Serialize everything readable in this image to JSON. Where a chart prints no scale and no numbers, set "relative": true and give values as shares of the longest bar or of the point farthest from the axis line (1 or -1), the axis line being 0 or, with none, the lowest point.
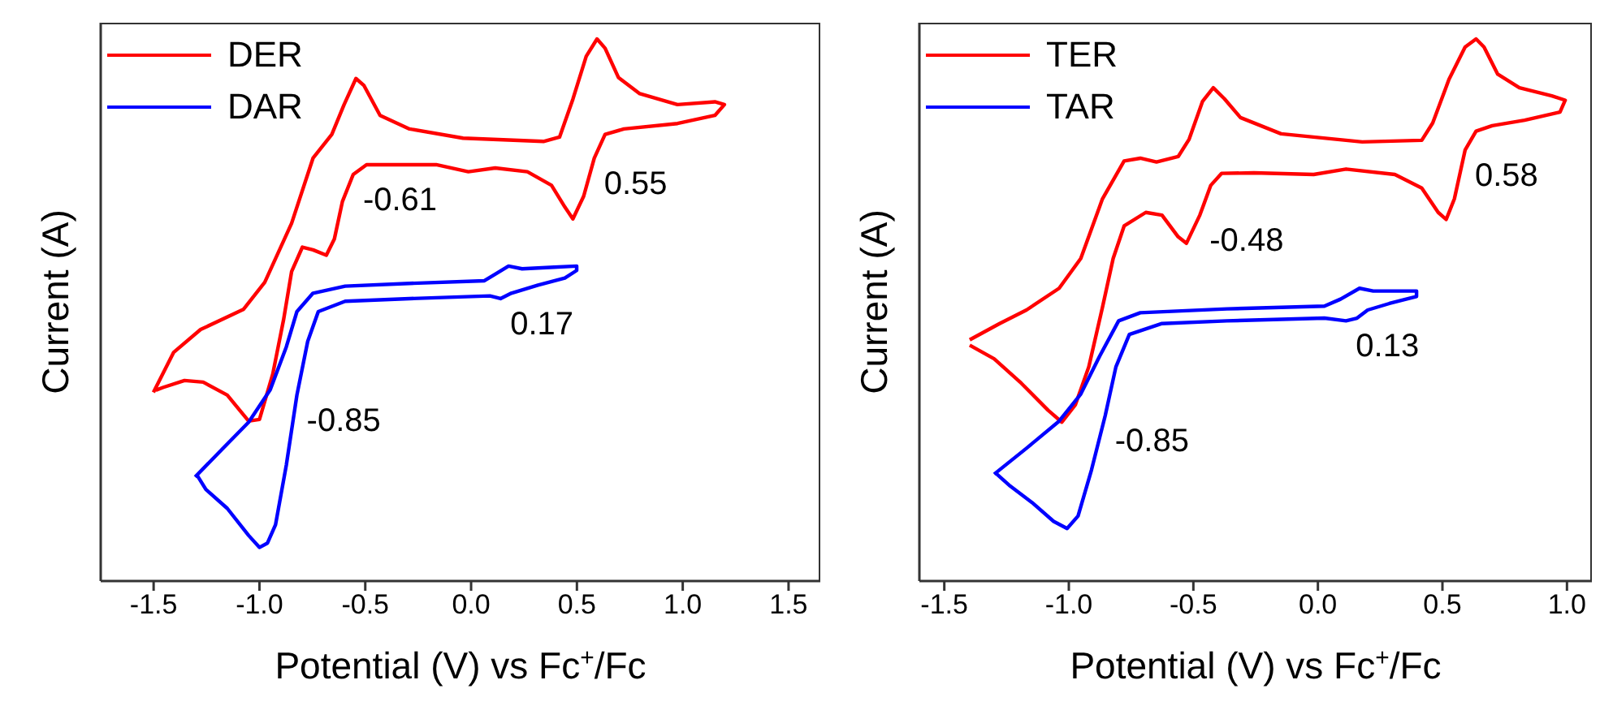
{
  "chart_data": [
    {
      "type": "line",
      "relative": true,
      "xlabel": "Potential (V) vs Fc$^{+}$/Fc",
      "ylabel": "Current (A)",
      "xlim": [
        -1.75,
        1.65
      ],
      "xticks": [
        {
          "value": -1.5,
          "label": "-1.5"
        },
        {
          "value": -1.0,
          "label": "-1.0"
        },
        {
          "value": -0.5,
          "label": "-0.5"
        },
        {
          "value": 0,
          "label": "0.0"
        },
        {
          "value": 0.5,
          "label": "0.5"
        },
        {
          "value": 1.0,
          "label": "1.0"
        },
        {
          "value": 1.5,
          "label": "1.5"
        }
      ],
      "legend": "top left",
      "grid": false,
      "marker": "none",
      "line_style": "solid",
      "series": [
        {
          "name": "DER",
          "color": "#ff0000",
          "x": [
            -1.501,
            -1.405,
            -1.278,
            -1.076,
            -0.975,
            -0.848,
            -0.747,
            -0.658,
            -0.6,
            -0.544,
            -0.506,
            -0.43,
            -0.291,
            -0.038,
            0.342,
            0.418,
            0.481,
            0.544,
            0.595,
            0.633,
            0.696,
            0.797,
            0.975,
            1.152,
            1.197,
            1.152,
            0.975,
            0.722,
            0.633,
            0.582,
            0.532,
            0.481,
            0.443,
            0.38,
            0.266,
            0.114,
            -0.013,
            -0.165,
            -0.494,
            -0.557,
            -0.608,
            -0.646,
            -0.684,
            -0.747,
            -0.797,
            -0.848,
            -0.886,
            -0.937,
            -1.0,
            -1.051,
            -1.152,
            -1.266,
            -1.354,
            -1.456,
            -1.49
          ],
          "values": [
            0.348,
            0.422,
            0.464,
            0.501,
            0.551,
            0.66,
            0.78,
            0.824,
            0.879,
            0.927,
            0.914,
            0.859,
            0.834,
            0.817,
            0.811,
            0.819,
            0.889,
            0.968,
            1.0,
            0.983,
            0.929,
            0.899,
            0.879,
            0.884,
            0.879,
            0.859,
            0.844,
            0.834,
            0.824,
            0.78,
            0.71,
            0.668,
            0.69,
            0.73,
            0.755,
            0.762,
            0.755,
            0.768,
            0.768,
            0.75,
            0.7,
            0.631,
            0.601,
            0.611,
            0.616,
            0.571,
            0.482,
            0.382,
            0.298,
            0.295,
            0.343,
            0.367,
            0.37,
            0.357,
            0.352
          ]
        },
        {
          "name": "DAR",
          "color": "#0000ff",
          "x": [
            -1.304,
            -1.177,
            -1.051,
            -0.949,
            -0.873,
            -0.823,
            -0.747,
            -0.595,
            -0.291,
            0.063,
            0.114,
            0.177,
            0.241,
            0.392,
            0.499,
            0.499,
            0.443,
            0.316,
            0.19,
            0.139,
            0.089,
            -0.291,
            -0.595,
            -0.722,
            -0.772,
            -0.823,
            -0.873,
            -0.924,
            -0.962,
            -1.0,
            -1.051,
            -1.152,
            -1.253,
            -1.296
          ],
          "values": [
            0.192,
            0.243,
            0.293,
            0.353,
            0.432,
            0.497,
            0.531,
            0.544,
            0.549,
            0.554,
            0.566,
            0.581,
            0.576,
            0.579,
            0.581,
            0.573,
            0.559,
            0.546,
            0.531,
            0.521,
            0.526,
            0.521,
            0.516,
            0.497,
            0.442,
            0.343,
            0.214,
            0.104,
            0.07,
            0.062,
            0.084,
            0.134,
            0.169,
            0.196
          ]
        }
      ],
      "annotations": [
        {
          "text": "-0.61",
          "x": -0.557,
          "y": 0.75
        },
        {
          "text": "0.55",
          "x": 0.582,
          "y": 0.78
        },
        {
          "text": "0.17",
          "x": 0.139,
          "y": 0.521
        },
        {
          "text": "-0.85",
          "x": -0.823,
          "y": 0.343
        }
      ]
    },
    {
      "type": "line",
      "relative": true,
      "xlabel": "Potential (V) vs Fc$^{+}$/Fc",
      "ylabel": "Current (A)",
      "xlim": [
        -1.6,
        1.1
      ],
      "xticks": [
        {
          "value": -1.5,
          "label": "-1.5"
        },
        {
          "value": -1.0,
          "label": "-1.0"
        },
        {
          "value": -0.5,
          "label": "-0.5"
        },
        {
          "value": 0,
          "label": "0.0"
        },
        {
          "value": 0.5,
          "label": "0.5"
        },
        {
          "value": 1.0,
          "label": "1.0"
        }
      ],
      "legend": "top left",
      "grid": false,
      "marker": "none",
      "line_style": "solid",
      "series": [
        {
          "name": "TER",
          "color": "#ff0000",
          "x": [
            -1.398,
            -1.278,
            -1.17,
            -1.039,
            -0.952,
            -0.865,
            -0.778,
            -0.713,
            -0.648,
            -0.561,
            -0.517,
            -0.463,
            -0.42,
            -0.376,
            -0.311,
            -0.148,
            0.178,
            0.417,
            0.461,
            0.526,
            0.591,
            0.635,
            0.667,
            0.722,
            0.809,
            0.939,
            0.993,
            0.972,
            0.83,
            0.7,
            0.635,
            0.591,
            0.548,
            0.515,
            0.483,
            0.417,
            0.309,
            0.113,
            -0.017,
            -0.257,
            -0.387,
            -0.43,
            -0.474,
            -0.528,
            -0.561,
            -0.626,
            -0.691,
            -0.778,
            -0.822,
            -0.865,
            -0.92,
            -0.974,
            -1.028,
            -1.083,
            -1.191,
            -1.3,
            -1.398
          ],
          "values": [
            0.445,
            0.475,
            0.5,
            0.54,
            0.595,
            0.705,
            0.775,
            0.78,
            0.773,
            0.783,
            0.815,
            0.885,
            0.91,
            0.89,
            0.855,
            0.825,
            0.81,
            0.813,
            0.845,
            0.925,
            0.985,
            1.0,
            0.985,
            0.935,
            0.91,
            0.895,
            0.887,
            0.865,
            0.85,
            0.84,
            0.83,
            0.795,
            0.705,
            0.667,
            0.68,
            0.725,
            0.75,
            0.76,
            0.75,
            0.753,
            0.752,
            0.73,
            0.675,
            0.623,
            0.635,
            0.675,
            0.68,
            0.655,
            0.595,
            0.505,
            0.395,
            0.325,
            0.293,
            0.315,
            0.365,
            0.41,
            0.435
          ]
        },
        {
          "name": "TAR",
          "color": "#0000ff",
          "x": [
            -1.3,
            -1.17,
            -1.039,
            -0.952,
            -0.876,
            -0.8,
            -0.713,
            -0.365,
            0.026,
            0.091,
            0.167,
            0.222,
            0.396,
            0.396,
            0.287,
            0.2,
            0.157,
            0.113,
            0.026,
            -0.365,
            -0.626,
            -0.757,
            -0.811,
            -0.854,
            -0.909,
            -0.963,
            -1.007,
            -1.061,
            -1.148,
            -1.235,
            -1.296
          ],
          "values": [
            0.197,
            0.245,
            0.295,
            0.345,
            0.415,
            0.48,
            0.495,
            0.502,
            0.507,
            0.52,
            0.54,
            0.535,
            0.535,
            0.525,
            0.512,
            0.5,
            0.485,
            0.48,
            0.485,
            0.48,
            0.475,
            0.455,
            0.395,
            0.305,
            0.205,
            0.12,
            0.097,
            0.11,
            0.145,
            0.175,
            0.2
          ]
        }
      ],
      "annotations": [
        {
          "text": "-0.48",
          "x": -0.474,
          "y": 0.675
        },
        {
          "text": "0.58",
          "x": 0.591,
          "y": 0.795
        },
        {
          "text": "0.13",
          "x": 0.113,
          "y": 0.48
        },
        {
          "text": "-0.85",
          "x": -0.854,
          "y": 0.305
        }
      ]
    }
  ]
}
